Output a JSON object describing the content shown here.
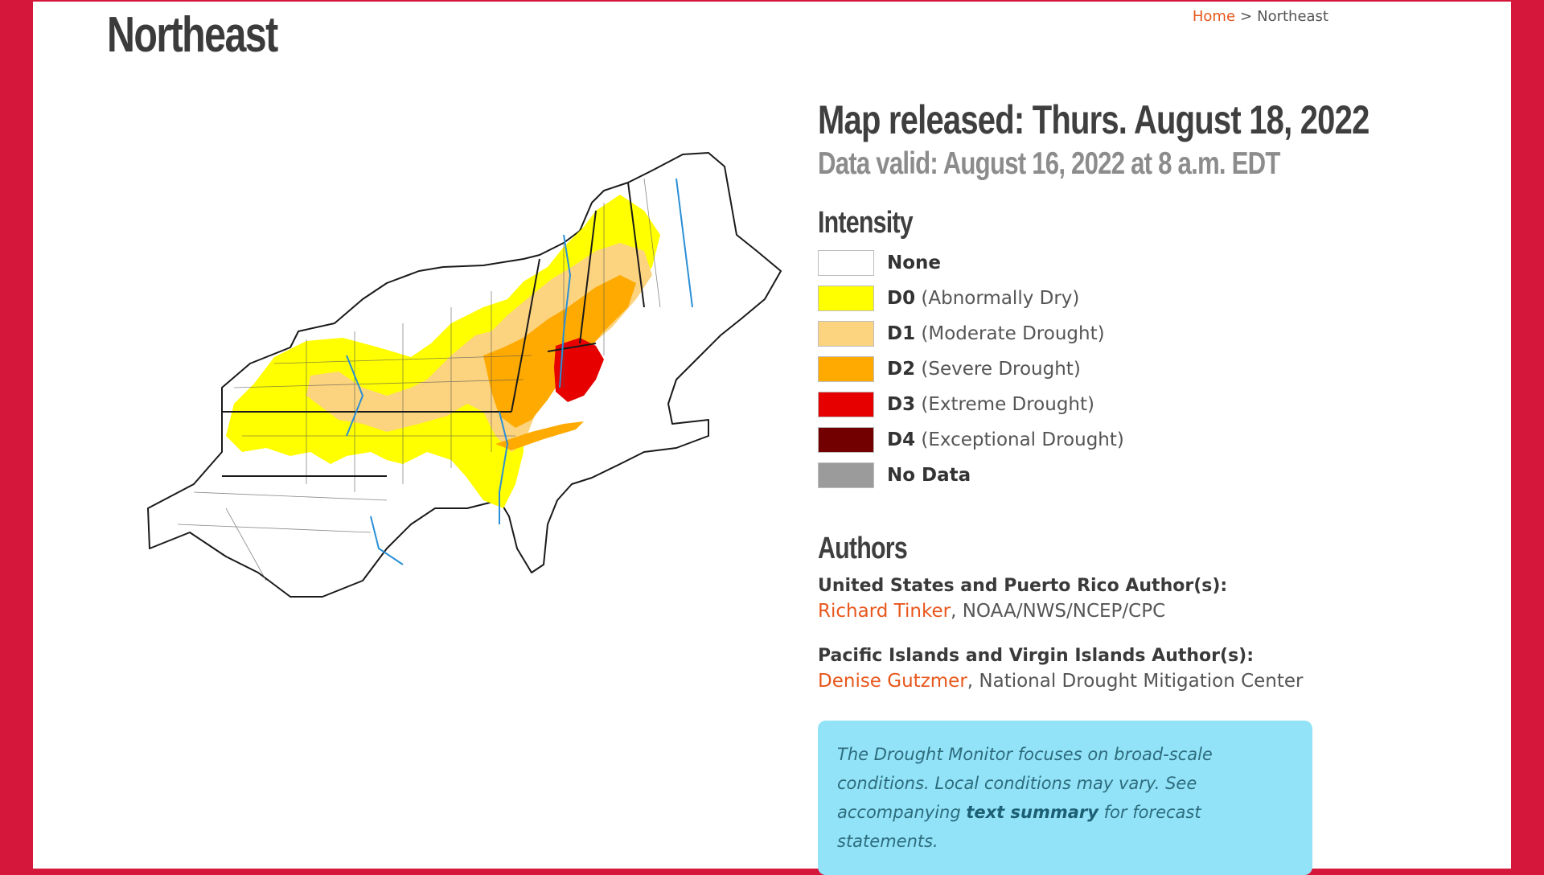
{
  "page": {
    "title": "Northeast"
  },
  "breadcrumb": {
    "home": "Home",
    "separator": ">",
    "current": "Northeast"
  },
  "map": {
    "icon": "drought-map-icon"
  },
  "info": {
    "released": "Map released: Thurs. August 18, 2022",
    "valid": "Data valid: August 16, 2022 at 8 a.m. EDT"
  },
  "intensity": {
    "title": "Intensity",
    "items": [
      {
        "code": "",
        "label": "None",
        "color": "#ffffff"
      },
      {
        "code": "D0",
        "label": "(Abnormally Dry)",
        "color": "#ffff00"
      },
      {
        "code": "D1",
        "label": "(Moderate Drought)",
        "color": "#fcd37f"
      },
      {
        "code": "D2",
        "label": "(Severe Drought)",
        "color": "#ffaa00"
      },
      {
        "code": "D3",
        "label": "(Extreme Drought)",
        "color": "#e60000"
      },
      {
        "code": "D4",
        "label": "(Exceptional Drought)",
        "color": "#730000"
      },
      {
        "code": "",
        "label": "No Data",
        "color": "#9b9b9b"
      }
    ]
  },
  "authors": {
    "title": "Authors",
    "us_heading": "United States and Puerto Rico Author(s):",
    "us_name": "Richard Tinker",
    "us_org": ", NOAA/NWS/NCEP/CPC",
    "pi_heading": "Pacific Islands and Virgin Islands Author(s):",
    "pi_name": "Denise Gutzmer",
    "pi_org": ", National Drought Mitigation Center"
  },
  "notice": {
    "text1": "The Drought Monitor focuses on broad-scale conditions. Local conditions may vary. See accompanying ",
    "link": "text summary",
    "text2": " for forecast statements."
  },
  "colors": {
    "accent": "#e8571c",
    "frame": "#d4173a",
    "notice_bg": "#92e3f8"
  }
}
